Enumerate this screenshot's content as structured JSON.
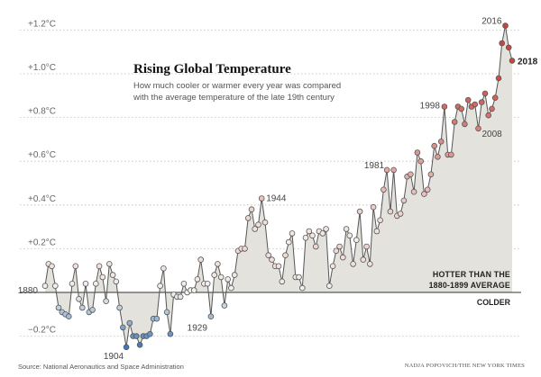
{
  "chart_data": {
    "type": "line",
    "title": "Rising Global Temperature",
    "subtitle": "How much cooler or warmer every year was compared with the average temperature of the late 19th century",
    "y_ticks": [
      "+1.2°C",
      "+1.0°C",
      "+0.8°C",
      "+0.6°C",
      "+0.4°C",
      "+0.2°C",
      "−0.2°C"
    ],
    "y_tick_values": [
      1.2,
      1.0,
      0.8,
      0.6,
      0.4,
      0.2,
      -0.2
    ],
    "ylim": [
      -0.28,
      1.25
    ],
    "xlim": [
      1880,
      2018
    ],
    "baseline": 0,
    "baseline_labels": {
      "above": "HOTTER THAN THE 1880-1899 AVERAGE",
      "above_line1": "HOTTER THAN THE",
      "above_line2": "1880-1899 AVERAGE",
      "below": "COLDER"
    },
    "year_labels": [
      {
        "year": 1880,
        "text": "1880"
      },
      {
        "year": 1904,
        "text": "1904"
      },
      {
        "year": 1929,
        "text": "1929"
      },
      {
        "year": 1944,
        "text": "1944"
      },
      {
        "year": 1981,
        "text": "1981"
      },
      {
        "year": 1998,
        "text": "1998"
      },
      {
        "year": 2008,
        "text": "2008"
      },
      {
        "year": 2016,
        "text": "2016"
      },
      {
        "year": 2018,
        "text": "2018"
      }
    ],
    "colors": {
      "fill": "#e4e2dc",
      "line": "#555555",
      "warm": "#c9463f",
      "cool": "#3f79b8",
      "neutral": "#f4f2ee"
    },
    "series": [
      {
        "x": [
          1880,
          1881,
          1882,
          1883,
          1884,
          1885,
          1886,
          1887,
          1888,
          1889,
          1890,
          1891,
          1892,
          1893,
          1894,
          1895,
          1896,
          1897,
          1898,
          1899,
          1900,
          1901,
          1902,
          1903,
          1904,
          1905,
          1906,
          1907,
          1908,
          1909,
          1910,
          1911,
          1912,
          1913,
          1914,
          1915,
          1916,
          1917,
          1918,
          1919,
          1920,
          1921,
          1922,
          1923,
          1924,
          1925,
          1926,
          1927,
          1928,
          1929,
          1930,
          1931,
          1932,
          1933,
          1934,
          1935,
          1936,
          1937,
          1938,
          1939,
          1940,
          1941,
          1942,
          1943,
          1944,
          1945,
          1946,
          1947,
          1948,
          1949,
          1950,
          1951,
          1952,
          1953,
          1954,
          1955,
          1956,
          1957,
          1958,
          1959,
          1960,
          1961,
          1962,
          1963,
          1964,
          1965,
          1966,
          1967,
          1968,
          1969,
          1970,
          1971,
          1972,
          1973,
          1974,
          1975,
          1976,
          1977,
          1978,
          1979,
          1980,
          1981,
          1982,
          1983,
          1984,
          1985,
          1986,
          1987,
          1988,
          1989,
          1990,
          1991,
          1992,
          1993,
          1994,
          1995,
          1996,
          1997,
          1998,
          1999,
          2000,
          2001,
          2002,
          2003,
          2004,
          2005,
          2006,
          2007,
          2008,
          2009,
          2010,
          2011,
          2012,
          2013,
          2014,
          2015,
          2016,
          2017,
          2018
        ],
        "y": [
          0.03,
          0.13,
          0.12,
          0.03,
          -0.07,
          -0.09,
          -0.1,
          -0.11,
          0.04,
          0.12,
          -0.03,
          -0.07,
          0.04,
          -0.09,
          -0.08,
          0.04,
          0.12,
          0.07,
          -0.04,
          0.13,
          0.08,
          0.05,
          -0.07,
          -0.16,
          -0.25,
          -0.14,
          -0.2,
          -0.2,
          -0.24,
          -0.2,
          -0.2,
          -0.19,
          -0.12,
          -0.12,
          0.03,
          0.11,
          -0.09,
          -0.19,
          -0.01,
          -0.02,
          -0.02,
          0.04,
          0.0,
          0.01,
          0.01,
          0.06,
          0.15,
          0.04,
          0.04,
          -0.11,
          0.08,
          0.13,
          0.07,
          -0.06,
          0.06,
          0.02,
          0.08,
          0.19,
          0.2,
          0.2,
          0.34,
          0.38,
          0.29,
          0.31,
          0.43,
          0.32,
          0.17,
          0.15,
          0.12,
          0.12,
          0.05,
          0.17,
          0.23,
          0.27,
          0.07,
          0.07,
          0.02,
          0.25,
          0.28,
          0.26,
          0.21,
          0.28,
          0.27,
          0.29,
          0.03,
          0.12,
          0.19,
          0.21,
          0.16,
          0.29,
          0.26,
          0.13,
          0.24,
          0.37,
          0.15,
          0.21,
          0.13,
          0.39,
          0.28,
          0.33,
          0.47,
          0.56,
          0.37,
          0.56,
          0.35,
          0.36,
          0.42,
          0.53,
          0.54,
          0.46,
          0.64,
          0.6,
          0.45,
          0.47,
          0.54,
          0.67,
          0.62,
          0.69,
          0.85,
          0.63,
          0.63,
          0.78,
          0.85,
          0.84,
          0.77,
          0.88,
          0.85,
          0.86,
          0.75,
          0.87,
          0.91,
          0.81,
          0.84,
          0.89,
          0.98,
          1.14,
          1.22,
          1.12,
          1.06
        ]
      }
    ]
  }
}
